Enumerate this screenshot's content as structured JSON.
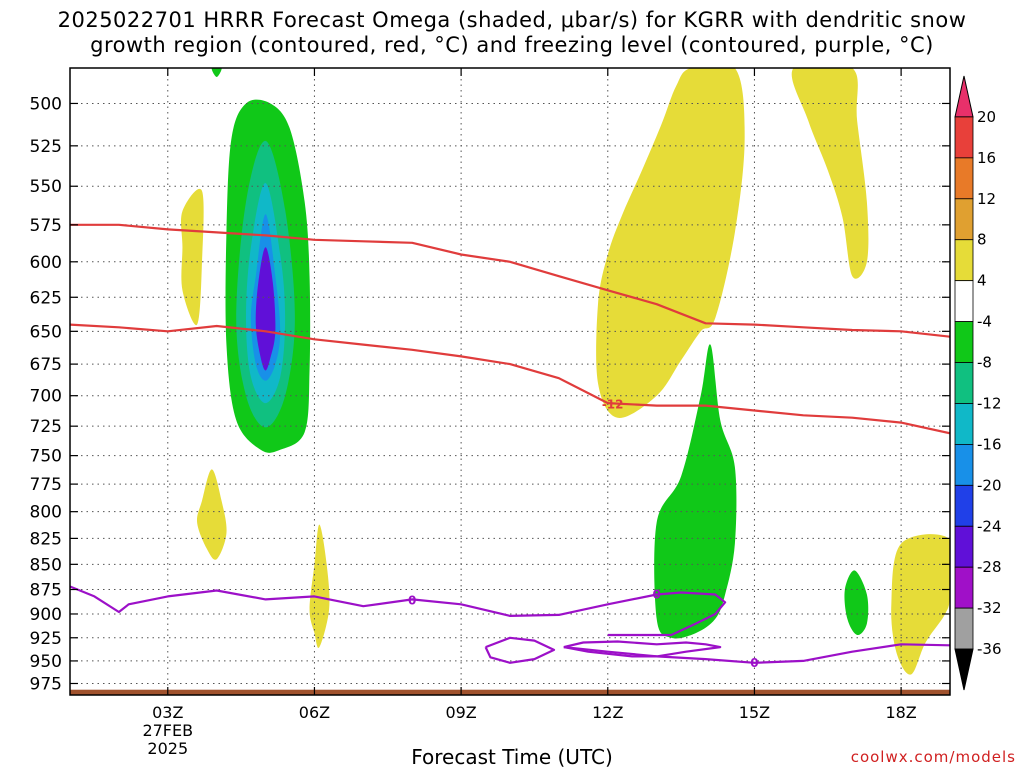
{
  "header": {
    "title_line1": "2025022701 HRRR Forecast Omega (shaded, μbar/s) for KGRR with dendritic snow",
    "title_line2": "growth region (contoured, red, °C) and freezing level (contoured, purple, °C)"
  },
  "footer": {
    "xlabel": "Forecast Time (UTC)",
    "credit": "coolwx.com/models"
  },
  "chart_data": {
    "type": "heatmap",
    "title": "2025022701 HRRR Forecast Omega (shaded, μbar/s) for KGRR with dendritic snow growth region (contoured, red, °C) and freezing level (contoured, purple, °C)",
    "xlabel": "Forecast Time (UTC)",
    "ylabel": "",
    "x_range_hours_utc": [
      1,
      19
    ],
    "y_range_hPa": [
      480,
      988
    ],
    "y_axis": "pressure, inverted (low pressure at top)",
    "grid": "dotted",
    "y_ticks": [
      500,
      525,
      550,
      575,
      600,
      625,
      650,
      675,
      700,
      725,
      750,
      775,
      800,
      825,
      850,
      875,
      900,
      925,
      950,
      975
    ],
    "x_ticks": [
      {
        "hour": 3,
        "label": "03Z",
        "sub1": "27FEB",
        "sub2": "2025"
      },
      {
        "hour": 6,
        "label": "06Z",
        "sub1": "",
        "sub2": ""
      },
      {
        "hour": 9,
        "label": "09Z",
        "sub1": "",
        "sub2": ""
      },
      {
        "hour": 12,
        "label": "12Z",
        "sub1": "",
        "sub2": ""
      },
      {
        "hour": 15,
        "label": "15Z",
        "sub1": "",
        "sub2": ""
      },
      {
        "hour": 18,
        "label": "18Z",
        "sub1": "",
        "sub2": ""
      }
    ],
    "colorbar": {
      "labels": [
        "20",
        "16",
        "12",
        "8",
        "4",
        "-4",
        "-8",
        "-12",
        "-16",
        "-20",
        "-24",
        "-28",
        "-32",
        "-36"
      ],
      "bins": [
        {
          "color": "#e8306a"
        },
        {
          "color": "#e8403a"
        },
        {
          "color": "#e87a28"
        },
        {
          "color": "#e0a030"
        },
        {
          "color": "#e6dc38"
        },
        {
          "color": "#ffffff"
        },
        {
          "color": "#10c818"
        },
        {
          "color": "#10c080"
        },
        {
          "color": "#10b8c8"
        },
        {
          "color": "#1890e8"
        },
        {
          "color": "#2040e8"
        },
        {
          "color": "#6010d8"
        },
        {
          "color": "#a010c8"
        },
        {
          "color": "#a0a0a0"
        },
        {
          "color": "#000000"
        }
      ]
    },
    "shaded_regions": [
      {
        "name": "green-upward-motion-1",
        "color": "#10c818",
        "level": -4,
        "outline": [
          [
            4.3,
            521
          ],
          [
            4.6,
            500
          ],
          [
            5.1,
            500
          ],
          [
            5.5,
            515
          ],
          [
            5.8,
            560
          ],
          [
            5.9,
            610
          ],
          [
            5.9,
            680
          ],
          [
            5.8,
            730
          ],
          [
            5.3,
            745
          ],
          [
            4.9,
            745
          ],
          [
            4.4,
            720
          ],
          [
            4.2,
            660
          ],
          [
            4.2,
            580
          ]
        ]
      },
      {
        "name": "teal-upward-motion-1",
        "color": "#10c080",
        "level": -8,
        "outline": [
          [
            4.6,
            560
          ],
          [
            5.0,
            522
          ],
          [
            5.4,
            565
          ],
          [
            5.6,
            640
          ],
          [
            5.4,
            700
          ],
          [
            5.0,
            726
          ],
          [
            4.6,
            700
          ],
          [
            4.4,
            640
          ]
        ]
      },
      {
        "name": "cyan-upward-motion-1",
        "color": "#10b8c8",
        "level": -12,
        "outline": [
          [
            4.7,
            590
          ],
          [
            5.0,
            548
          ],
          [
            5.3,
            595
          ],
          [
            5.4,
            640
          ],
          [
            5.3,
            685
          ],
          [
            5.0,
            706
          ],
          [
            4.7,
            685
          ],
          [
            4.6,
            640
          ]
        ]
      },
      {
        "name": "blue-upward-motion-1",
        "color": "#1890e8",
        "level": -16,
        "outline": [
          [
            4.8,
            610
          ],
          [
            5.0,
            568
          ],
          [
            5.2,
            610
          ],
          [
            5.3,
            650
          ],
          [
            5.2,
            675
          ],
          [
            5.0,
            688
          ],
          [
            4.8,
            675
          ],
          [
            4.7,
            640
          ]
        ]
      },
      {
        "name": "purple-upward-motion-1",
        "color": "#6010d8",
        "level": -24,
        "outline": [
          [
            4.85,
            615
          ],
          [
            5.0,
            590
          ],
          [
            5.15,
            615
          ],
          [
            5.2,
            650
          ],
          [
            5.1,
            670
          ],
          [
            5.0,
            680
          ],
          [
            4.9,
            670
          ],
          [
            4.8,
            645
          ]
        ]
      },
      {
        "name": "yellow-sinking-motion-1",
        "color": "#e6dc38",
        "level": 4,
        "outline": [
          [
            3.3,
            566
          ],
          [
            3.7,
            553
          ],
          [
            3.7,
            600
          ],
          [
            3.6,
            645
          ],
          [
            3.3,
            620
          ],
          [
            3.3,
            590
          ]
        ]
      },
      {
        "name": "yellow-sinking-motion-2",
        "color": "#e6dc38",
        "level": 4,
        "outline": [
          [
            3.7,
            790
          ],
          [
            3.9,
            762
          ],
          [
            4.1,
            790
          ],
          [
            4.2,
            820
          ],
          [
            4.0,
            845
          ],
          [
            3.8,
            835
          ],
          [
            3.6,
            810
          ]
        ]
      },
      {
        "name": "yellow-sinking-motion-3",
        "color": "#e6dc38",
        "level": 4,
        "outline": [
          [
            6.0,
            850
          ],
          [
            6.1,
            812
          ],
          [
            6.25,
            850
          ],
          [
            6.3,
            895
          ],
          [
            6.1,
            935
          ],
          [
            6.0,
            920
          ],
          [
            5.9,
            895
          ]
        ]
      },
      {
        "name": "yellow-sinking-motion-4",
        "color": "#e6dc38",
        "level": 4,
        "outline": [
          [
            13.7,
            480
          ],
          [
            14.6,
            480
          ],
          [
            14.8,
            520
          ],
          [
            14.6,
            580
          ],
          [
            14.2,
            640
          ],
          [
            13.9,
            650
          ],
          [
            13.5,
            672
          ],
          [
            13.0,
            700
          ],
          [
            12.2,
            718
          ],
          [
            11.8,
            690
          ],
          [
            11.8,
            630
          ],
          [
            12.0,
            595
          ],
          [
            12.3,
            568
          ],
          [
            12.7,
            540
          ],
          [
            13.1,
            512
          ],
          [
            13.4,
            490
          ]
        ]
      },
      {
        "name": "yellow-sinking-motion-5",
        "color": "#e6dc38",
        "level": 4,
        "outline": [
          [
            15.8,
            480
          ],
          [
            17.0,
            480
          ],
          [
            17.1,
            510
          ],
          [
            17.3,
            560
          ],
          [
            17.3,
            600
          ],
          [
            17.0,
            610
          ],
          [
            16.8,
            570
          ],
          [
            16.5,
            540
          ],
          [
            16.1,
            510
          ]
        ]
      },
      {
        "name": "yellow-sinking-motion-6",
        "color": "#e6dc38",
        "level": 4,
        "outline": [
          [
            18.0,
            830
          ],
          [
            19.0,
            826
          ],
          [
            19.0,
            880
          ],
          [
            18.9,
            900
          ],
          [
            18.5,
            930
          ],
          [
            18.2,
            965
          ],
          [
            17.9,
            940
          ],
          [
            17.8,
            890
          ]
        ]
      },
      {
        "name": "green-upward-motion-2",
        "color": "#10c818",
        "level": -4,
        "outline": [
          [
            13.0,
            810
          ],
          [
            13.5,
            768
          ],
          [
            13.9,
            700
          ],
          [
            14.1,
            660
          ],
          [
            14.3,
            720
          ],
          [
            14.6,
            760
          ],
          [
            14.6,
            830
          ],
          [
            14.4,
            880
          ],
          [
            14.2,
            905
          ],
          [
            13.8,
            920
          ],
          [
            13.3,
            925
          ],
          [
            13.0,
            905
          ]
        ]
      },
      {
        "name": "green-upward-motion-3",
        "color": "#10c818",
        "level": -4,
        "outline": [
          [
            16.85,
            875
          ],
          [
            17.05,
            856
          ],
          [
            17.3,
            880
          ],
          [
            17.3,
            910
          ],
          [
            17.1,
            922
          ],
          [
            16.9,
            905
          ]
        ]
      },
      {
        "name": "green-upward-motion-4",
        "color": "#10c818",
        "level": -4,
        "outline": [
          [
            3.9,
            480
          ],
          [
            4.1,
            480
          ],
          [
            4.0,
            485
          ]
        ]
      }
    ],
    "contours": [
      {
        "name": "dgz-upper-contour",
        "color": "#e03c3c",
        "variable": "temperature",
        "points": [
          [
            1,
            575
          ],
          [
            2,
            575
          ],
          [
            3,
            578
          ],
          [
            4,
            580
          ],
          [
            5,
            582
          ],
          [
            6,
            585
          ],
          [
            7,
            586
          ],
          [
            8,
            587
          ],
          [
            9,
            595
          ],
          [
            10,
            600
          ],
          [
            11,
            610
          ],
          [
            12,
            620
          ],
          [
            13,
            630
          ],
          [
            14,
            644
          ],
          [
            15,
            645
          ],
          [
            16,
            647
          ],
          [
            17,
            649
          ],
          [
            18,
            650
          ],
          [
            19,
            654
          ]
        ]
      },
      {
        "name": "dgz-lower-contour",
        "color": "#e03c3c",
        "variable": "temperature",
        "label": "-12",
        "points": [
          [
            1,
            645
          ],
          [
            2,
            647
          ],
          [
            3,
            650
          ],
          [
            4,
            646
          ],
          [
            5,
            650
          ],
          [
            6,
            656
          ],
          [
            7,
            660
          ],
          [
            8,
            664
          ],
          [
            9,
            669
          ],
          [
            10,
            675
          ],
          [
            11,
            686
          ],
          [
            12,
            706
          ],
          [
            13,
            708
          ],
          [
            14,
            708
          ],
          [
            15,
            712
          ],
          [
            16,
            716
          ],
          [
            17,
            718
          ],
          [
            18,
            722
          ],
          [
            19,
            731
          ]
        ]
      },
      {
        "name": "freezing-level-contour",
        "color": "#9c10c8",
        "variable": "temperature",
        "label": "0",
        "points": [
          [
            1,
            872
          ],
          [
            1.5,
            882
          ],
          [
            2,
            898
          ],
          [
            2.2,
            890
          ],
          [
            3,
            882
          ],
          [
            4,
            876
          ],
          [
            5,
            885
          ],
          [
            6,
            882
          ],
          [
            7,
            892
          ],
          [
            8,
            885
          ],
          [
            9,
            890
          ],
          [
            10,
            902
          ],
          [
            11,
            901
          ],
          [
            12,
            890
          ],
          [
            13,
            880
          ],
          [
            13.5,
            878
          ],
          [
            14.2,
            880
          ],
          [
            14.4,
            888
          ],
          [
            14.2,
            900
          ],
          [
            13.8,
            910
          ],
          [
            13.3,
            922
          ],
          [
            12.8,
            922
          ],
          [
            12.0,
            922
          ]
        ]
      },
      {
        "name": "freezing-level-closed-contour",
        "color": "#9c10c8",
        "variable": "temperature",
        "points": [
          [
            9.5,
            935
          ],
          [
            10.0,
            925
          ],
          [
            10.5,
            928
          ],
          [
            10.9,
            938
          ],
          [
            10.5,
            948
          ],
          [
            10.0,
            952
          ],
          [
            9.6,
            946
          ],
          [
            9.5,
            935
          ]
        ]
      },
      {
        "name": "freezing-level-lower-contour",
        "color": "#9c10c8",
        "variable": "temperature",
        "label": "0",
        "points": [
          [
            11.1,
            935
          ],
          [
            11.5,
            930
          ],
          [
            12.2,
            929
          ],
          [
            13.0,
            932
          ],
          [
            13.6,
            930
          ],
          [
            14.0,
            932
          ],
          [
            14.3,
            935
          ],
          [
            13.6,
            940
          ],
          [
            13.0,
            945
          ],
          [
            12.5,
            945
          ],
          [
            11.6,
            940
          ],
          [
            11.1,
            935
          ]
        ]
      },
      {
        "name": "freezing-level-surface-contour",
        "color": "#9c10c8",
        "variable": "temperature",
        "points": [
          [
            11.1,
            935
          ],
          [
            12,
            940
          ],
          [
            13,
            945
          ],
          [
            14,
            948
          ],
          [
            15,
            952
          ],
          [
            16,
            950
          ],
          [
            17,
            940
          ],
          [
            18,
            932
          ],
          [
            19,
            933
          ]
        ]
      }
    ],
    "contour_labels": [
      {
        "text": "-12",
        "x": 12.1,
        "y_hPa": 707,
        "color": "#e03c3c"
      },
      {
        "text": "0",
        "x": 8.0,
        "y_hPa": 886,
        "color": "#9c10c8"
      },
      {
        "text": "0",
        "x": 13.0,
        "y_hPa": 880,
        "color": "#9c10c8"
      },
      {
        "text": "0",
        "x": 15.0,
        "y_hPa": 952,
        "color": "#9c10c8"
      }
    ],
    "terrain": {
      "color": "#a0522d",
      "top_hPa": 982
    }
  }
}
